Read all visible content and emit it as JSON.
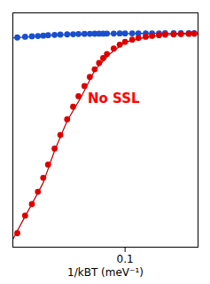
{
  "chart_data": {
    "type": "scatter",
    "xlabel": "1/kBT (meV⁻¹)",
    "log": true,
    "xlim": [
      0.011,
      0.42
    ],
    "ylim": [
      0.002,
      1.8
    ],
    "xticks": [
      0.1
    ],
    "tick_labels": "x",
    "grid": false,
    "series": [
      {
        "type": "line",
        "color": "#2244aa",
        "x": [
          0.011,
          0.015,
          0.022,
          0.035,
          0.055,
          0.09,
          0.15,
          0.25,
          0.39
        ],
        "values": [
          0.87,
          0.895,
          0.935,
          0.962,
          0.978,
          0.988,
          0.993,
          0.995,
          0.996
        ]
      },
      {
        "type": "line",
        "color": "#bb0000",
        "x": [
          0.011,
          0.013,
          0.016,
          0.02,
          0.025,
          0.032,
          0.042,
          0.055,
          0.075,
          0.1,
          0.14,
          0.2,
          0.3,
          0.39
        ],
        "values": [
          0.0025,
          0.004,
          0.007,
          0.013,
          0.033,
          0.078,
          0.155,
          0.34,
          0.555,
          0.77,
          0.868,
          0.94,
          0.972,
          0.982
        ]
      },
      {
        "type": "scatter",
        "color": "#1a4fcc",
        "x": [
          0.012,
          0.014,
          0.016,
          0.018,
          0.02,
          0.022,
          0.025,
          0.028,
          0.032,
          0.036,
          0.04,
          0.045,
          0.05,
          0.055,
          0.06,
          0.065,
          0.07,
          0.08,
          0.09,
          0.1,
          0.115,
          0.13,
          0.15,
          0.17,
          0.195,
          0.22,
          0.26,
          0.3,
          0.35,
          0.39
        ],
        "values": [
          0.88,
          0.9,
          0.91,
          0.92,
          0.93,
          0.94,
          0.95,
          0.958,
          0.964,
          0.969,
          0.973,
          0.977,
          0.98,
          0.982,
          0.984,
          0.985,
          0.986,
          0.988,
          0.99,
          0.991,
          0.992,
          0.993,
          0.993,
          0.994,
          0.994,
          0.995,
          0.995,
          0.995,
          0.996,
          0.996
        ]
      },
      {
        "type": "scatter",
        "color": "#dd0000",
        "x": [
          0.012,
          0.014,
          0.016,
          0.018,
          0.02,
          0.022,
          0.025,
          0.028,
          0.032,
          0.036,
          0.04,
          0.045,
          0.05,
          0.055,
          0.06,
          0.065,
          0.07,
          0.08,
          0.09,
          0.1,
          0.115,
          0.13,
          0.15,
          0.17,
          0.195,
          0.22,
          0.26,
          0.3,
          0.35,
          0.39
        ],
        "values": [
          0.003,
          0.005,
          0.007,
          0.01,
          0.015,
          0.022,
          0.035,
          0.052,
          0.082,
          0.118,
          0.16,
          0.215,
          0.28,
          0.35,
          0.42,
          0.485,
          0.545,
          0.64,
          0.715,
          0.775,
          0.828,
          0.868,
          0.9,
          0.922,
          0.942,
          0.955,
          0.965,
          0.972,
          0.978,
          0.982
        ]
      }
    ],
    "annotations": [
      {
        "text": "No SSL",
        "x": 0.048,
        "y": 0.13,
        "color": "#ff0000"
      }
    ]
  }
}
